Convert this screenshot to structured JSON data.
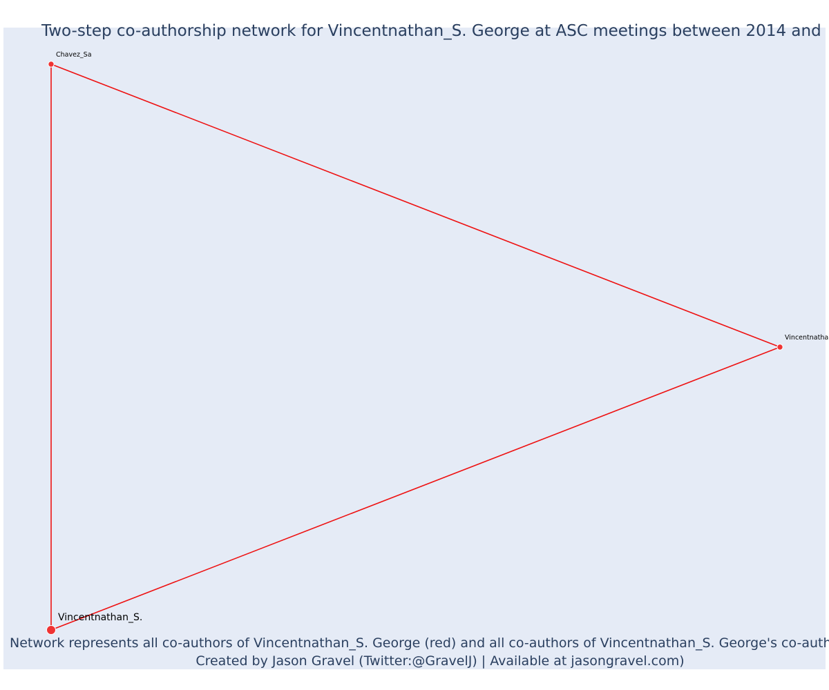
{
  "title": "Two-step co-authorship network for Vincentnathan_S. George at ASC meetings between 2014 and",
  "caption_line1": "Network represents all co-authors of Vincentnathan_S. George (red) and all co-authors of Vincentnathan_S. George's co-authors",
  "caption_line2": "Created by Jason Gravel (Twitter:@GravelJ) | Available at jasongravel.com)",
  "colors": {
    "plot_background": "#e5ebf6",
    "edge": "#ee1111",
    "node_fill": "#ef3333",
    "node_stroke": "#ffffff",
    "text": "#2a3f5f"
  },
  "chart_data": {
    "type": "network",
    "nodes": [
      {
        "id": "chavez",
        "label": "Chavez_Sa",
        "x": 0.0,
        "y": 1.0,
        "size": "small"
      },
      {
        "id": "vincent_right",
        "label": "Vincentnatha",
        "x": 1.0,
        "y": 0.5,
        "size": "small"
      },
      {
        "id": "vincent_main",
        "label": "Vincentnathan_S.",
        "x": 0.0,
        "y": 0.0,
        "size": "large"
      }
    ],
    "edges": [
      {
        "source": "chavez",
        "target": "vincent_right"
      },
      {
        "source": "vincent_right",
        "target": "vincent_main"
      },
      {
        "source": "chavez",
        "target": "vincent_main"
      }
    ]
  }
}
